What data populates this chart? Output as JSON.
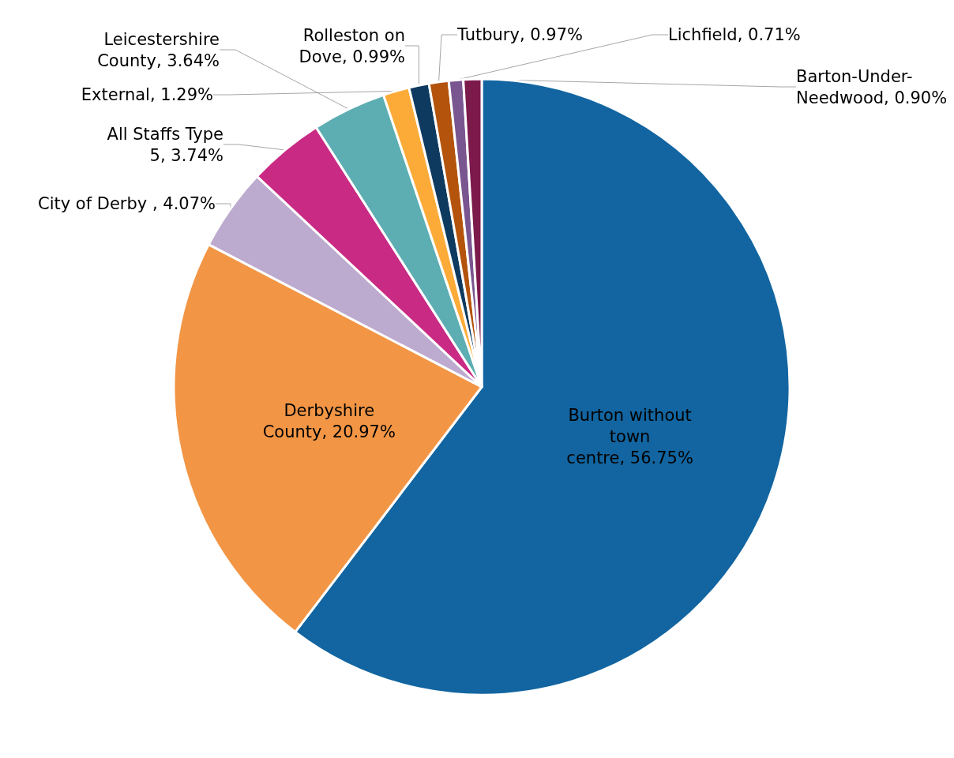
{
  "chart_data": {
    "type": "pie",
    "categories": [
      "Burton without town centre",
      "Derbyshire County",
      "City of Derby ",
      "All Staffs Type 5",
      "Leicestershire County",
      "External",
      "Rolleston on Dove",
      "Tutbury",
      "Lichfield",
      "Barton-Under-Needwood"
    ],
    "values": [
      56.75,
      20.97,
      4.07,
      3.74,
      3.64,
      1.29,
      0.99,
      0.97,
      0.71,
      0.9
    ],
    "value_labels": [
      "56.75%",
      "20.97%",
      "4.07%",
      "3.74%",
      "3.64%",
      "1.29%",
      "0.99%",
      "0.97%",
      "0.71%",
      "0.90%"
    ],
    "colors": [
      "#1265a0",
      "#f29646",
      "#bcaacf",
      "#c92a84",
      "#5daeb2",
      "#fdab38",
      "#0e3a5f",
      "#b4540c",
      "#7a5690",
      "#7c1a4c"
    ],
    "legend": false
  }
}
